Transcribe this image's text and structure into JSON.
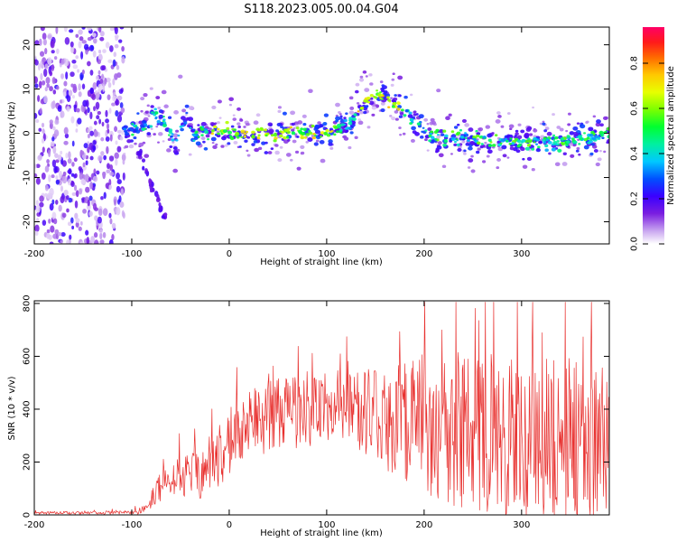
{
  "title": "S118.2023.005.00.04.G04",
  "colorbar": {
    "label": "Normalized spectral amplitude",
    "ticks": [
      0.0,
      0.2,
      0.4,
      0.6,
      0.8
    ],
    "tick_labels": [
      "0.0",
      "0.2",
      "0.4",
      "0.6",
      "0.8"
    ],
    "range": [
      0,
      0.96
    ]
  },
  "chart_data": [
    {
      "type": "heatmap",
      "title": "",
      "xlabel": "Height of straight line (km)",
      "ylabel": "Frequency (Hz)",
      "xlim": [
        -200,
        390
      ],
      "ylim": [
        -25,
        24
      ],
      "xticks": [
        -200,
        -100,
        0,
        100,
        200,
        300
      ],
      "xtick_labels": [
        "-200",
        "-100",
        "0",
        "100",
        "200",
        "300"
      ],
      "yticks": [
        -20,
        -10,
        0,
        10,
        20
      ],
      "ytick_labels": [
        "-20",
        "-10",
        "0",
        "10",
        "20"
      ],
      "noise_region_x": [
        -200,
        -108
      ],
      "ridge": {
        "x": [
          -108,
          -95,
          -85,
          -75,
          -65,
          -55,
          -45,
          -35,
          -25,
          -10,
          0,
          20,
          40,
          60,
          80,
          100,
          110,
          120,
          130,
          140,
          150,
          160,
          170,
          180,
          190,
          200,
          220,
          250,
          280,
          310,
          340,
          360,
          380,
          390
        ],
        "freq": [
          0.0,
          0.5,
          2.0,
          4.0,
          2.0,
          -2.0,
          3.0,
          0.0,
          0.5,
          0.5,
          0.5,
          0.0,
          0.0,
          0.0,
          0.0,
          0.5,
          1.0,
          2.0,
          4.0,
          7.0,
          9.0,
          8.0,
          6.5,
          4.5,
          2.5,
          0.5,
          -1.0,
          -1.5,
          -2.0,
          -2.0,
          -2.0,
          -1.5,
          -1.0,
          -0.5
        ]
      },
      "branch": {
        "x": [
          -95,
          -90,
          -85,
          -80,
          -75,
          -70,
          -65
        ],
        "freq": [
          -3,
          -6,
          -9,
          -12,
          -14,
          -17,
          -19
        ]
      }
    },
    {
      "type": "line",
      "title": "",
      "xlabel": "Height of straight line (km)",
      "ylabel": "SNR (10 * v/v)",
      "xlim": [
        -200,
        390
      ],
      "ylim": [
        0,
        810
      ],
      "xticks": [
        -200,
        -100,
        0,
        100,
        200,
        300
      ],
      "xtick_labels": [
        "-200",
        "-100",
        "0",
        "100",
        "200",
        "300"
      ],
      "yticks": [
        0,
        200,
        400,
        600,
        800
      ],
      "ytick_labels": [
        "0",
        "200",
        "400",
        "600",
        "800"
      ],
      "series": [
        {
          "color": "#e8312f",
          "envelope": {
            "x": [
              -200,
              -150,
              -100,
              -85,
              -75,
              -60,
              -45,
              -30,
              -15,
              -5,
              5,
              20,
              40,
              60,
              80,
              100,
              120,
              140,
              160,
              180,
              200,
              220,
              240,
              260,
              280,
              300,
              320,
              340,
              360,
              390
            ],
            "mean": [
              8,
              8,
              10,
              20,
              90,
              130,
              150,
              150,
              180,
              270,
              300,
              340,
              370,
              390,
              400,
              410,
              400,
              390,
              370,
              360,
              340,
              330,
              320,
              310,
              300,
              300,
              290,
              280,
              280,
              270
            ],
            "spread": [
              6,
              6,
              8,
              20,
              60,
              80,
              90,
              100,
              120,
              150,
              140,
              140,
              150,
              160,
              160,
              150,
              140,
              180,
              220,
              260,
              300,
              320,
              330,
              340,
              350,
              360,
              360,
              360,
              350,
              340
            ]
          }
        }
      ]
    }
  ]
}
